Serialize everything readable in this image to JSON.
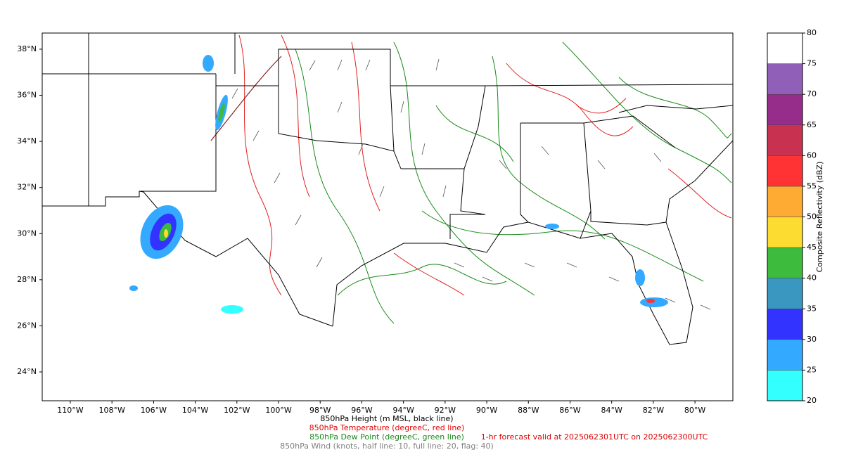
{
  "map": {
    "lon_range": [
      -111.35,
      -78.18
    ],
    "lat_range": [
      22.75,
      38.7
    ],
    "lon_ticks": [
      {
        "value": -110,
        "label": "110°W"
      },
      {
        "value": -108,
        "label": "108°W"
      },
      {
        "value": -106,
        "label": "106°W"
      },
      {
        "value": -104,
        "label": "104°W"
      },
      {
        "value": -102,
        "label": "102°W"
      },
      {
        "value": -100,
        "label": "100°W"
      },
      {
        "value": -98,
        "label": "98°W"
      },
      {
        "value": -96,
        "label": "96°W"
      },
      {
        "value": -94,
        "label": "94°W"
      },
      {
        "value": -92,
        "label": "92°W"
      },
      {
        "value": -90,
        "label": "90°W"
      },
      {
        "value": -88,
        "label": "88°W"
      },
      {
        "value": -86,
        "label": "86°W"
      },
      {
        "value": -84,
        "label": "84°W"
      },
      {
        "value": -82,
        "label": "82°W"
      },
      {
        "value": -80,
        "label": "80°W"
      }
    ],
    "lat_ticks": [
      {
        "value": 24,
        "label": "24°N"
      },
      {
        "value": 26,
        "label": "26°N"
      },
      {
        "value": 28,
        "label": "28°N"
      },
      {
        "value": 30,
        "label": "30°N"
      },
      {
        "value": 32,
        "label": "32°N"
      },
      {
        "value": 34,
        "label": "34°N"
      },
      {
        "value": 36,
        "label": "36°N"
      },
      {
        "value": 38,
        "label": "38°N"
      }
    ],
    "colorbar": {
      "label": "Composite Reflectivity (dBZ)",
      "range": [
        20,
        80
      ],
      "ticks": [
        20,
        25,
        30,
        35,
        40,
        45,
        50,
        55,
        60,
        65,
        70,
        75,
        80
      ],
      "colors": [
        "#33ffff",
        "#33aaff",
        "#3333ff",
        "#3a98c0",
        "#3cbb3c",
        "#fddc32",
        "#fdab32",
        "#ff3333",
        "#c83250",
        "#962d8a",
        "#9060b8",
        "#ffffff"
      ]
    },
    "captions": {
      "height": "850hPa Height (m MSL, black line)",
      "temperature": "850hPa Temperature (degreeC, red line)",
      "dew_point": "850hPa Dew Point (degreeC, green line)",
      "wind": "850hPa Wind (knots, half line: 10, full line: 20, flag: 40)",
      "valid": "1-hr forecast valid at 2025062301UTC on 2025062300UTC"
    }
  }
}
